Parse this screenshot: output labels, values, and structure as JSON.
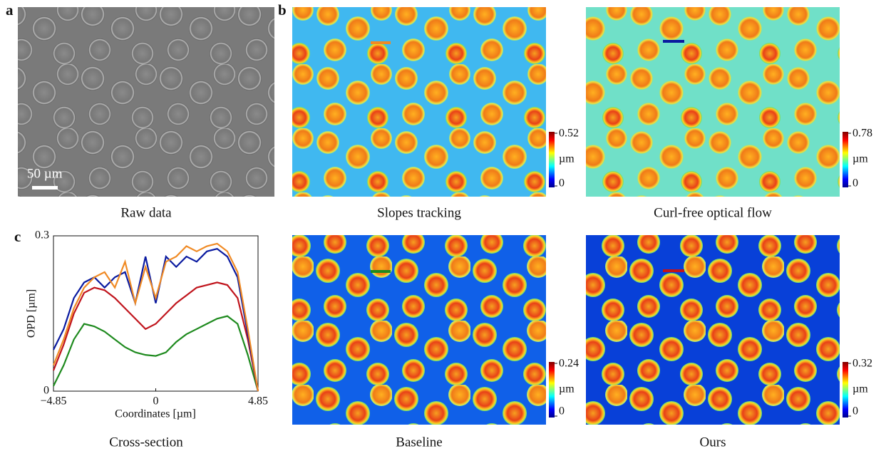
{
  "panel_labels": [
    "a",
    "b",
    "c"
  ],
  "scale_bar": "50 µm",
  "images": [
    {
      "caption": "Raw data"
    },
    {
      "caption": "Slopes tracking",
      "colorbar": {
        "max": 0.52,
        "unit": "µm",
        "min": 0
      }
    },
    {
      "caption": "Curl-free optical flow",
      "colorbar": {
        "max": 0.78,
        "unit": "µm",
        "min": 0
      }
    },
    {
      "caption": "Baseline",
      "colorbar": {
        "max": 0.24,
        "unit": "µm",
        "min": 0
      }
    },
    {
      "caption": "Ours",
      "colorbar": {
        "max": 0.32,
        "unit": "µm",
        "min": 0
      }
    }
  ],
  "chart_data": {
    "type": "line",
    "caption": "Cross-section",
    "xlabel": "Coordinates [µm]",
    "ylabel": "OPD [µm]",
    "x": [
      -4.85,
      -4.365,
      -3.88,
      -3.395,
      -2.91,
      -2.425,
      -1.94,
      -1.455,
      -0.97,
      -0.485,
      0,
      0.485,
      0.97,
      1.455,
      1.94,
      2.425,
      2.91,
      3.395,
      3.88,
      4.365,
      4.85
    ],
    "series": [
      {
        "color": "#f08a24",
        "values": [
          0.05,
          0.1,
          0.16,
          0.2,
          0.22,
          0.23,
          0.2,
          0.25,
          0.17,
          0.24,
          0.18,
          0.25,
          0.26,
          0.28,
          0.27,
          0.28,
          0.285,
          0.27,
          0.23,
          0.12,
          0
        ]
      },
      {
        "color": "#0a1aa0",
        "values": [
          0.08,
          0.12,
          0.18,
          0.21,
          0.22,
          0.2,
          0.22,
          0.23,
          0.17,
          0.26,
          0.17,
          0.26,
          0.24,
          0.26,
          0.25,
          0.27,
          0.275,
          0.26,
          0.22,
          0.11,
          0
        ]
      },
      {
        "color": "#c0141c",
        "values": [
          0.04,
          0.09,
          0.15,
          0.19,
          0.2,
          0.195,
          0.18,
          0.16,
          0.14,
          0.12,
          0.13,
          0.15,
          0.17,
          0.185,
          0.2,
          0.205,
          0.21,
          0.205,
          0.18,
          0.1,
          0
        ]
      },
      {
        "color": "#1e8a1e",
        "values": [
          0.01,
          0.05,
          0.1,
          0.13,
          0.125,
          0.115,
          0.1,
          0.085,
          0.075,
          0.07,
          0.068,
          0.075,
          0.095,
          0.11,
          0.12,
          0.13,
          0.14,
          0.145,
          0.13,
          0.07,
          0
        ]
      }
    ],
    "xlim": [
      -4.85,
      4.85
    ],
    "xticks": [
      {
        "value": -4.85,
        "label": "−4.85"
      },
      0,
      4.85
    ],
    "ylim": [
      0,
      0.3
    ],
    "yticks": [
      0,
      0.3
    ]
  }
}
